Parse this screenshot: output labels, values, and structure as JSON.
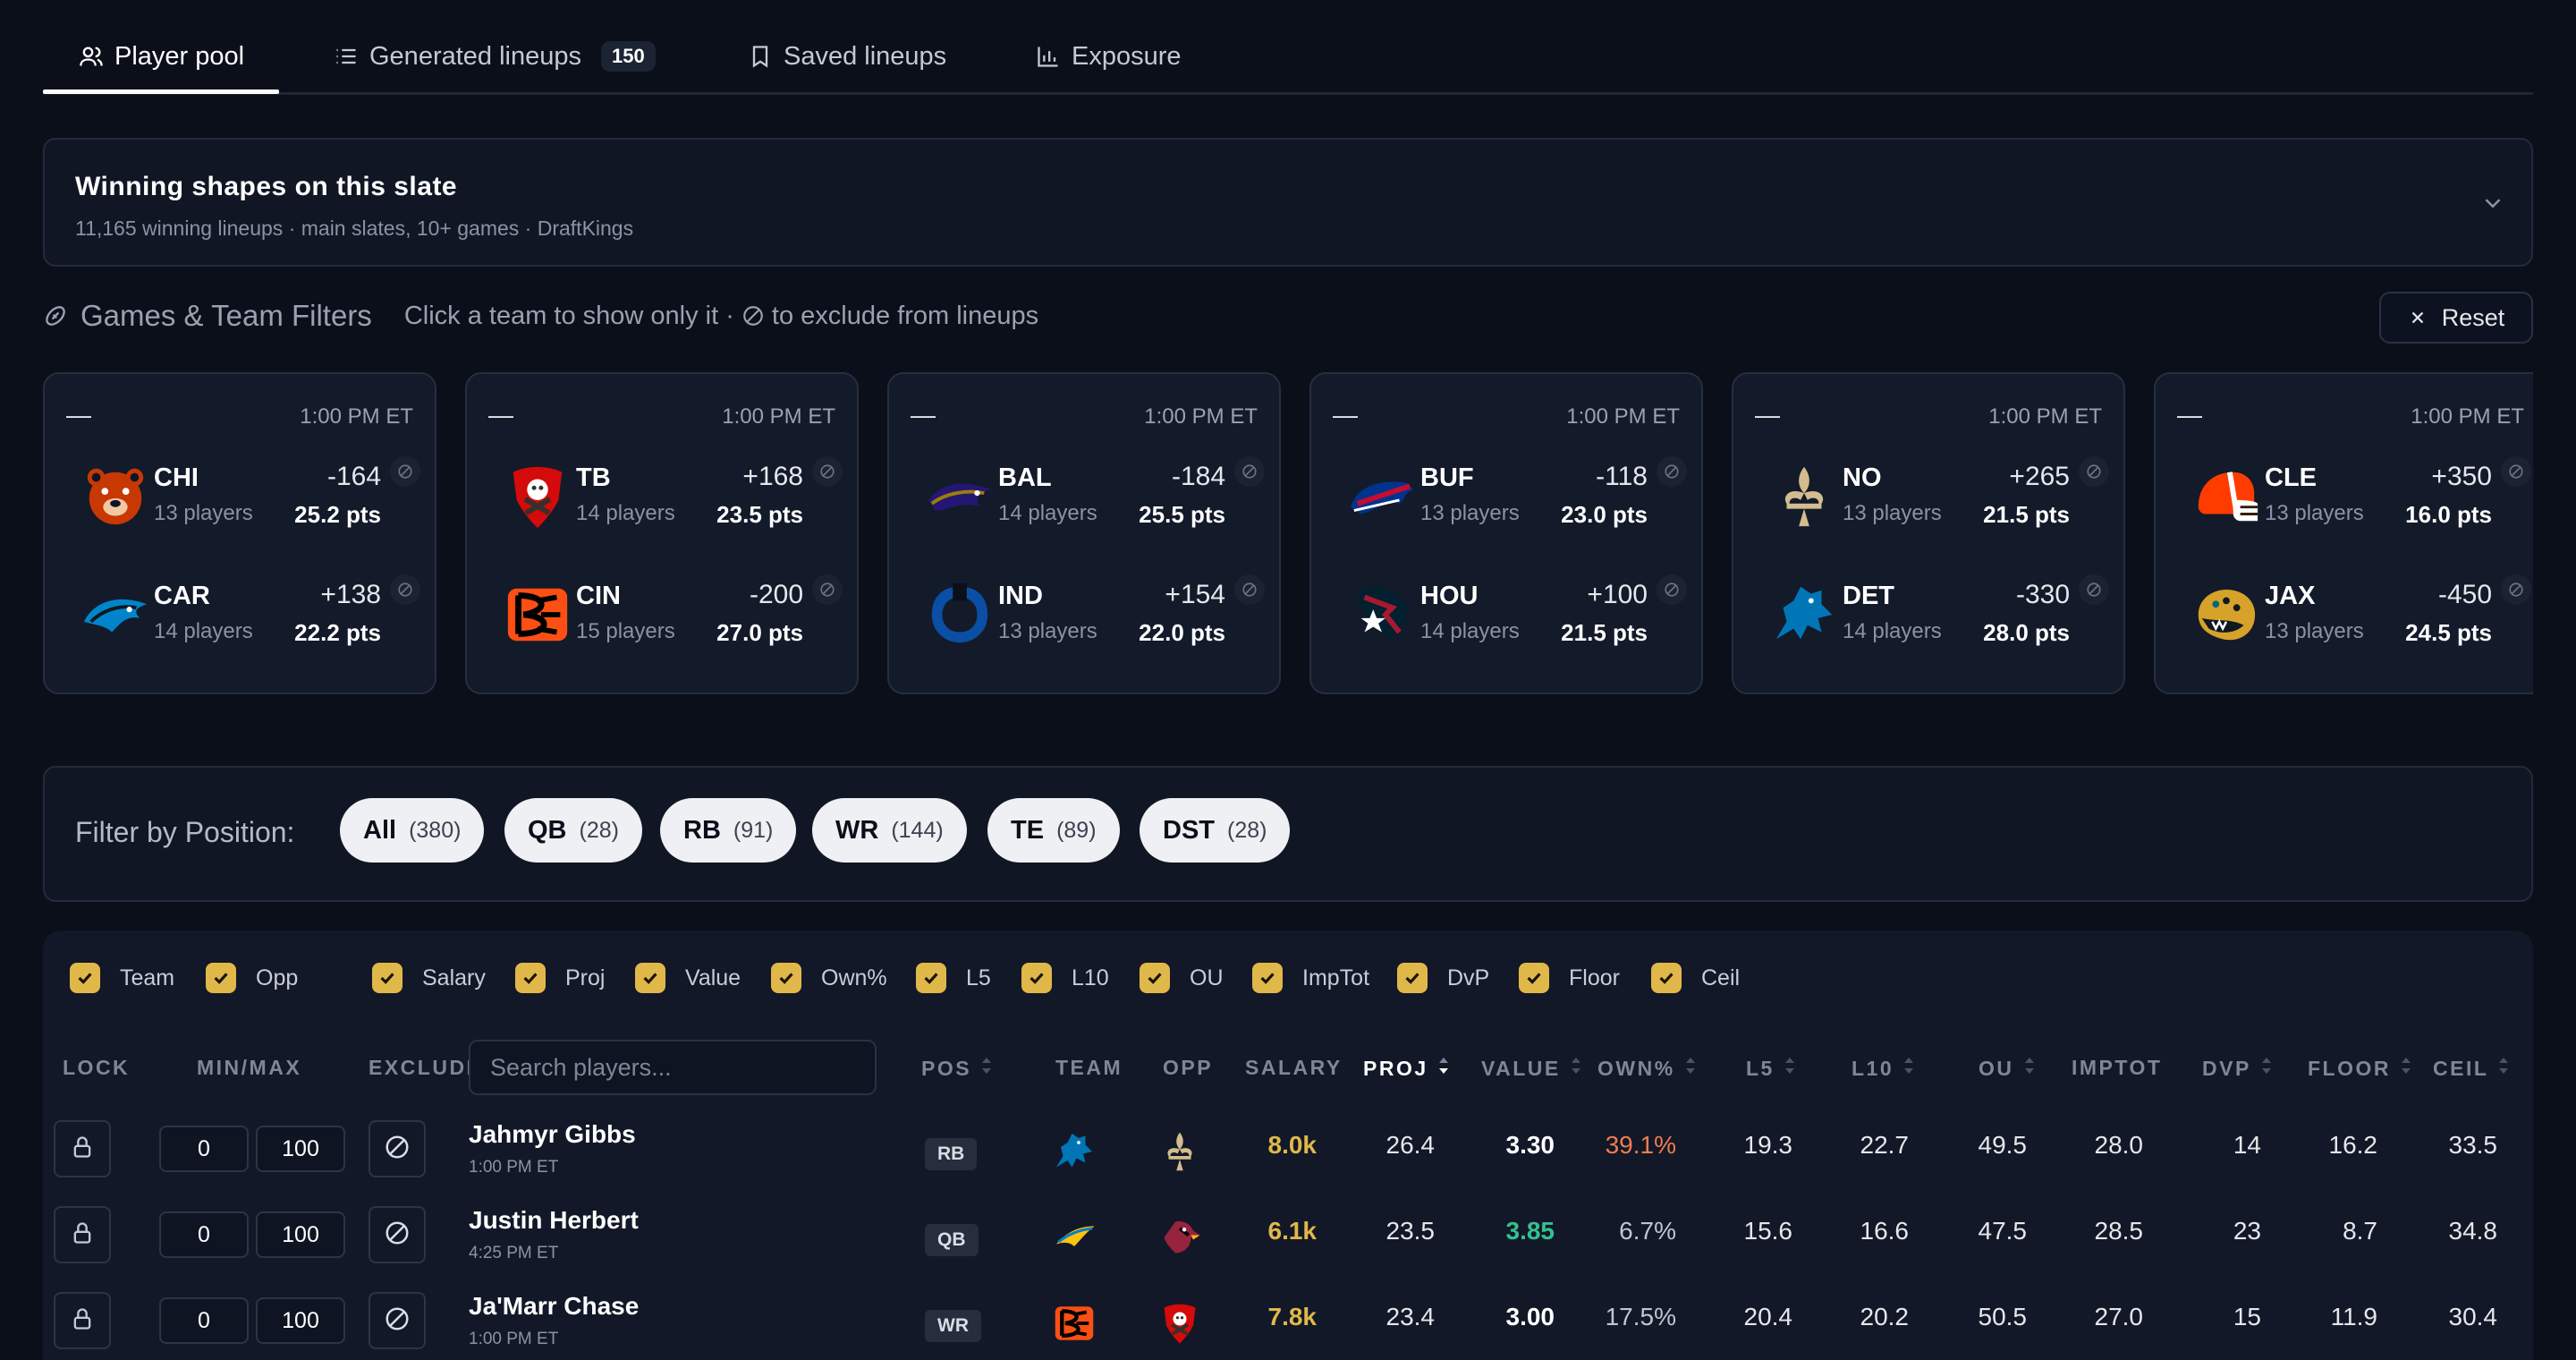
{
  "tabs": [
    {
      "label": "Player pool",
      "active": true
    },
    {
      "label": "Generated lineups",
      "badge": "150"
    },
    {
      "label": "Saved lineups"
    },
    {
      "label": "Exposure"
    }
  ],
  "shapes": {
    "title": "Winning shapes on this slate",
    "subtitle": "11,165 winning lineups · main slates, 10+ games · DraftKings"
  },
  "games_header": {
    "title": "Games & Team Filters",
    "hint_pre": "Click a team to show only it ·",
    "hint_post": "to exclude from lineups",
    "reset_label": "Reset"
  },
  "games": [
    {
      "dash": "—",
      "time": "1:00 PM ET",
      "teams": [
        {
          "abbr": "CHI",
          "players": "13 players",
          "ml": "-164",
          "pts": "25.2 pts",
          "icon": "bears-logo"
        },
        {
          "abbr": "CAR",
          "players": "14 players",
          "ml": "+138",
          "pts": "22.2 pts",
          "icon": "panthers-logo"
        }
      ]
    },
    {
      "dash": "—",
      "time": "1:00 PM ET",
      "teams": [
        {
          "abbr": "TB",
          "players": "14 players",
          "ml": "+168",
          "pts": "23.5 pts",
          "icon": "buccaneers-logo"
        },
        {
          "abbr": "CIN",
          "players": "15 players",
          "ml": "-200",
          "pts": "27.0 pts",
          "icon": "bengals-logo"
        }
      ]
    },
    {
      "dash": "—",
      "time": "1:00 PM ET",
      "teams": [
        {
          "abbr": "BAL",
          "players": "14 players",
          "ml": "-184",
          "pts": "25.5 pts",
          "icon": "ravens-logo"
        },
        {
          "abbr": "IND",
          "players": "13 players",
          "ml": "+154",
          "pts": "22.0 pts",
          "icon": "colts-logo"
        }
      ]
    },
    {
      "dash": "—",
      "time": "1:00 PM ET",
      "teams": [
        {
          "abbr": "BUF",
          "players": "13 players",
          "ml": "-118",
          "pts": "23.0 pts",
          "icon": "bills-logo"
        },
        {
          "abbr": "HOU",
          "players": "14 players",
          "ml": "+100",
          "pts": "21.5 pts",
          "icon": "texans-logo"
        }
      ]
    },
    {
      "dash": "—",
      "time": "1:00 PM ET",
      "teams": [
        {
          "abbr": "NO",
          "players": "13 players",
          "ml": "+265",
          "pts": "21.5 pts",
          "icon": "saints-logo"
        },
        {
          "abbr": "DET",
          "players": "14 players",
          "ml": "-330",
          "pts": "28.0 pts",
          "icon": "lions-logo"
        }
      ]
    },
    {
      "dash": "—",
      "time": "1:00 PM ET",
      "teams": [
        {
          "abbr": "CLE",
          "players": "13 players",
          "ml": "+350",
          "pts": "16.0 pts",
          "icon": "browns-logo"
        },
        {
          "abbr": "JAX",
          "players": "13 players",
          "ml": "-450",
          "pts": "24.5 pts",
          "icon": "jaguars-logo"
        }
      ]
    }
  ],
  "position_filter": {
    "label": "Filter by Position:",
    "pills": [
      {
        "label": "All",
        "count": "(380)"
      },
      {
        "label": "QB",
        "count": "(28)"
      },
      {
        "label": "RB",
        "count": "(91)"
      },
      {
        "label": "WR",
        "count": "(144)"
      },
      {
        "label": "TE",
        "count": "(89)"
      },
      {
        "label": "DST",
        "count": "(28)"
      }
    ]
  },
  "column_toggles": [
    "Team",
    "Opp",
    "Salary",
    "Proj",
    "Value",
    "Own%",
    "L5",
    "L10",
    "OU",
    "ImpTot",
    "DvP",
    "Floor",
    "Ceil"
  ],
  "table": {
    "headers": {
      "lock": "LOCK",
      "minmax": "MIN/MAX",
      "exclude": "EXCLUDE",
      "pos": "POS",
      "team": "TEAM",
      "opp": "OPP",
      "salary": "SALARY",
      "proj": "PROJ",
      "value": "VALUE",
      "own": "OWN%",
      "l5": "L5",
      "l10": "L10",
      "ou": "OU",
      "imptot": "IMPTOT",
      "dvp": "DVP",
      "floor": "FLOOR",
      "ceil": "CEIL"
    },
    "search_placeholder": "Search players...",
    "rows": [
      {
        "name": "Jahmyr Gibbs",
        "time": "1:00 PM ET",
        "min": "0",
        "max": "100",
        "pos": "RB",
        "team": "lions-logo",
        "opp": "saints-logo",
        "salary": "8.0k",
        "proj": "26.4",
        "value": "3.30",
        "own": "39.1%",
        "l5": "19.3",
        "l10": "22.7",
        "ou": "49.5",
        "imptot": "28.0",
        "dvp": "14",
        "floor": "16.2",
        "ceil": "33.5"
      },
      {
        "name": "Justin Herbert",
        "time": "4:25 PM ET",
        "min": "0",
        "max": "100",
        "pos": "QB",
        "team": "chargers-logo",
        "opp": "cardinals-logo",
        "salary": "6.1k",
        "proj": "23.5",
        "value": "3.85",
        "own": "6.7%",
        "l5": "15.6",
        "l10": "16.6",
        "ou": "47.5",
        "imptot": "28.5",
        "dvp": "23",
        "floor": "8.7",
        "ceil": "34.8"
      },
      {
        "name": "Ja'Marr Chase",
        "time": "1:00 PM ET",
        "min": "0",
        "max": "100",
        "pos": "WR",
        "team": "bengals-logo",
        "opp": "buccaneers-logo",
        "salary": "7.8k",
        "proj": "23.4",
        "value": "3.00",
        "own": "17.5%",
        "l5": "20.4",
        "l10": "20.2",
        "ou": "50.5",
        "imptot": "27.0",
        "dvp": "15",
        "floor": "11.9",
        "ceil": "30.4"
      }
    ]
  },
  "colors": {
    "accent_gold": "#e0b84a",
    "value_green": "#34c08f",
    "own_orange": "#f07c4f"
  }
}
